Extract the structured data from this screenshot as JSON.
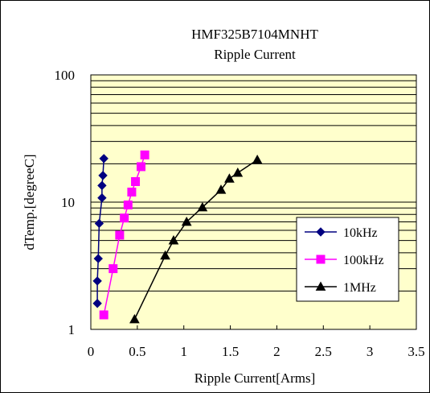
{
  "chart_data": {
    "type": "line",
    "title": "HMF325B7104MNHT",
    "subtitle": "Ripple Current",
    "xlabel": "Ripple Current[Arms]",
    "ylabel": "dTemp.[degreeC]",
    "xlim": [
      0,
      3.5
    ],
    "ylim": [
      1,
      100
    ],
    "yscale": "log",
    "x_ticks": [
      "0",
      "0.5",
      "1",
      "1.5",
      "2",
      "2.5",
      "3",
      "3.5"
    ],
    "y_ticks": [
      "1",
      "10",
      "100"
    ],
    "grid": true,
    "legend_position": "bottom-right",
    "plot_background": "#ffffcc",
    "series": [
      {
        "name": "10kHz",
        "color": "#000080",
        "marker": "diamond",
        "points": [
          [
            0.07,
            1.6
          ],
          [
            0.07,
            2.4
          ],
          [
            0.08,
            3.6
          ],
          [
            0.09,
            6.8
          ],
          [
            0.12,
            10.8
          ],
          [
            0.12,
            13.5
          ],
          [
            0.13,
            16.2
          ],
          [
            0.14,
            22.0
          ]
        ]
      },
      {
        "name": "100kHz",
        "color": "#ff00ff",
        "marker": "square",
        "points": [
          [
            0.14,
            1.3
          ],
          [
            0.24,
            3.0
          ],
          [
            0.31,
            5.5
          ],
          [
            0.36,
            7.5
          ],
          [
            0.4,
            9.5
          ],
          [
            0.44,
            12.0
          ],
          [
            0.48,
            14.5
          ],
          [
            0.54,
            19.0
          ],
          [
            0.58,
            23.5
          ]
        ]
      },
      {
        "name": "1MHz",
        "color": "#000000",
        "marker": "triangle",
        "points": [
          [
            0.47,
            1.2
          ],
          [
            0.8,
            3.8
          ],
          [
            0.89,
            5.0
          ],
          [
            1.03,
            7.0
          ],
          [
            1.2,
            9.1
          ],
          [
            1.4,
            12.5
          ],
          [
            1.49,
            15.3
          ],
          [
            1.58,
            17.0
          ],
          [
            1.79,
            21.5
          ]
        ]
      }
    ]
  }
}
